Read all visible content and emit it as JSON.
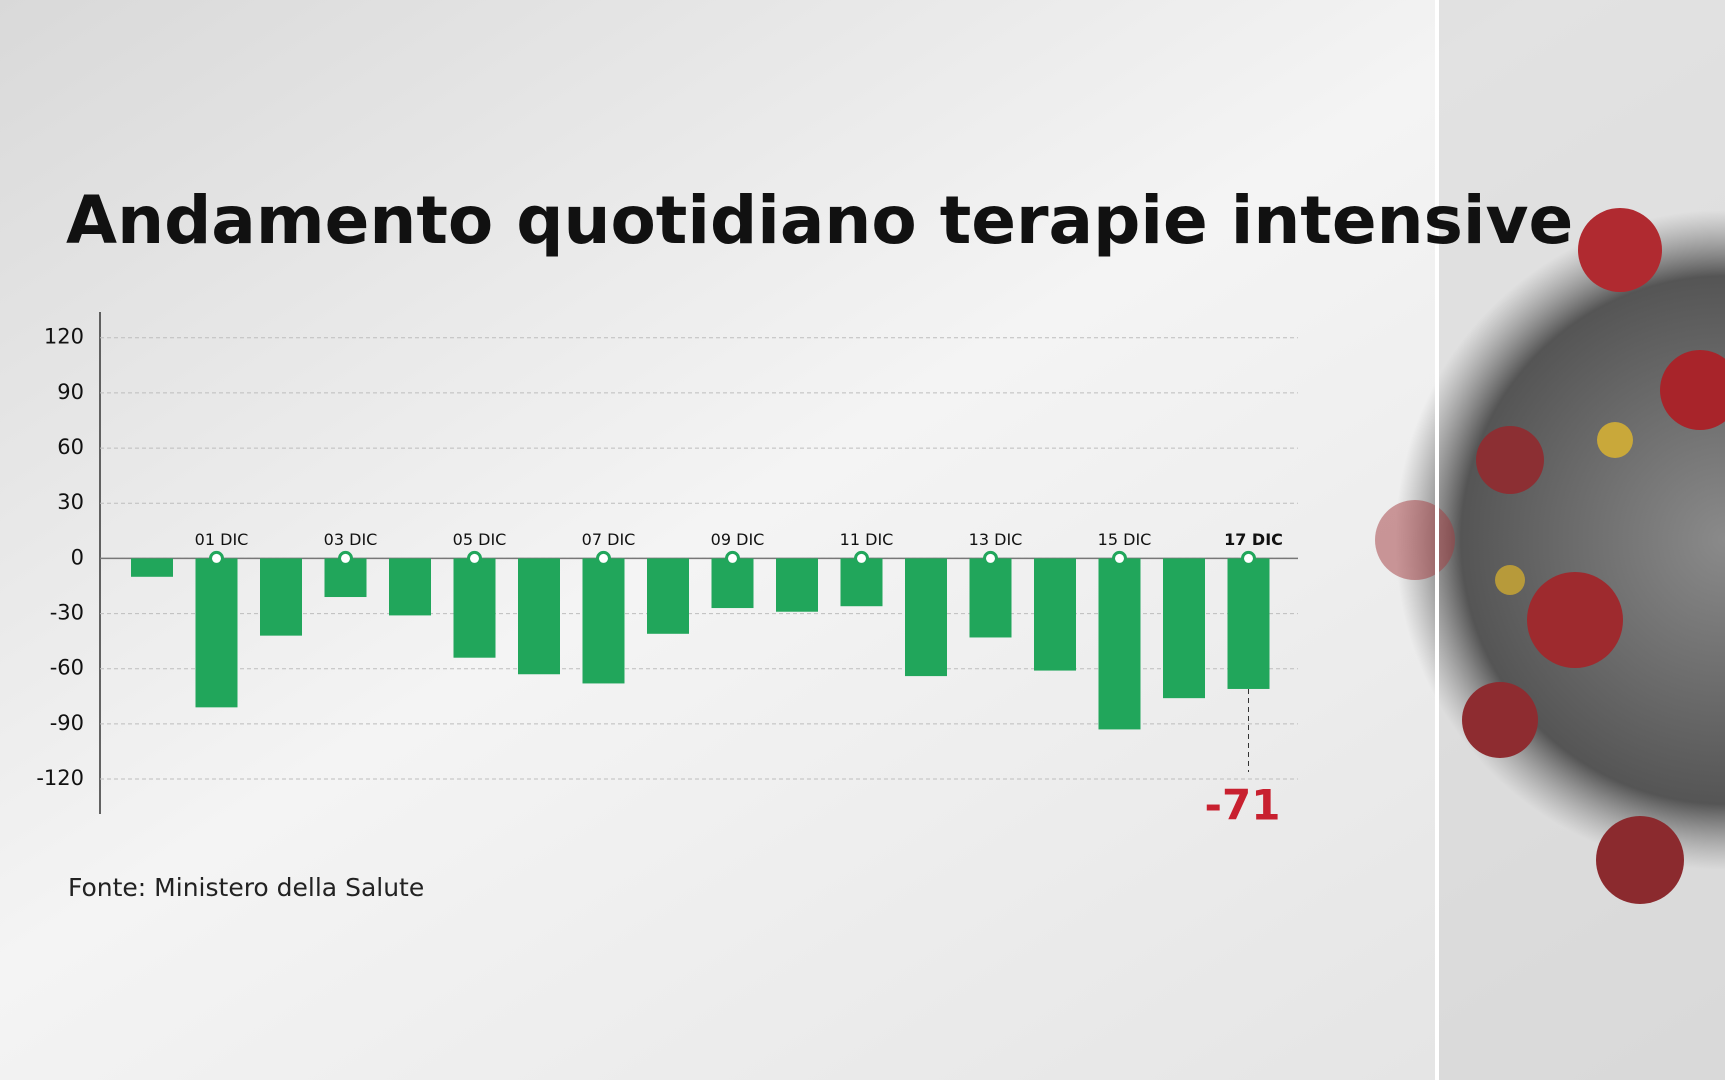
{
  "chart_data": {
    "type": "bar",
    "title": "Andamento quotidiano terapie intensive",
    "source": "Fonte: Ministero della Salute",
    "categories": [
      null,
      "01 DIC",
      null,
      "03 DIC",
      null,
      "05 DIC",
      null,
      "07 DIC",
      null,
      "09 DIC",
      null,
      "11 DIC",
      null,
      "13 DIC",
      null,
      "15 DIC",
      null,
      "17 DIC"
    ],
    "values": [
      -10,
      -81,
      -42,
      -21,
      -31,
      -54,
      -63,
      -68,
      -41,
      -27,
      -29,
      -26,
      -64,
      -43,
      -61,
      -93,
      -76,
      -71
    ],
    "color": "#21a65b",
    "highlight_color": "#c8202f",
    "ylim": [
      -139,
      134
    ],
    "yticks": [
      -120,
      -90,
      -60,
      -30,
      0,
      30,
      60,
      90,
      120
    ],
    "grid": true
  }
}
